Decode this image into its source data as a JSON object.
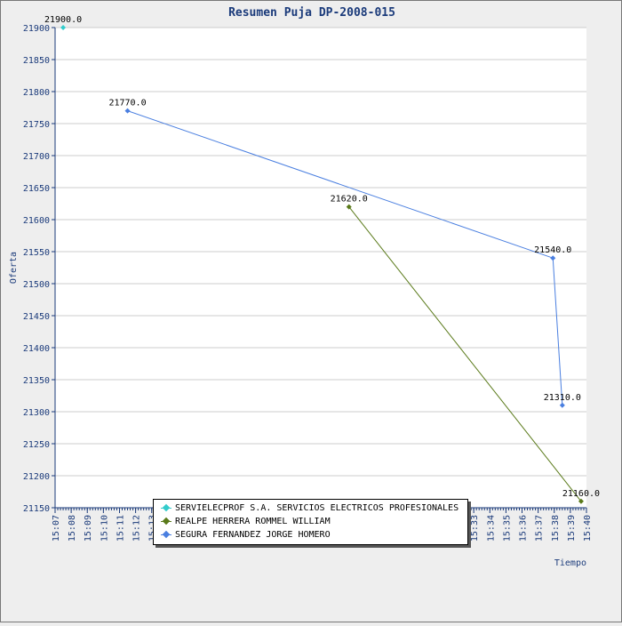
{
  "chart_data": {
    "type": "line",
    "title": "Resumen Puja DP-2008-015",
    "xlabel": "Tiempo",
    "ylabel": "Oferta",
    "ylim": [
      21150,
      21900
    ],
    "yticks": [
      21150,
      21200,
      21250,
      21300,
      21350,
      21400,
      21450,
      21500,
      21550,
      21600,
      21650,
      21700,
      21750,
      21800,
      21850,
      21900
    ],
    "xlim": [
      "15:07",
      "15:40"
    ],
    "xticks": [
      "15:07",
      "15:08",
      "15:09",
      "15:10",
      "15:11",
      "15:12",
      "15:13",
      "15:14",
      "15:15",
      "15:16",
      "15:17",
      "15:18",
      "15:19",
      "15:20",
      "15:21",
      "15:22",
      "15:23",
      "15:24",
      "15:25",
      "15:26",
      "15:27",
      "15:28",
      "15:29",
      "15:30",
      "15:31",
      "15:32",
      "15:33",
      "15:34",
      "15:35",
      "15:36",
      "15:37",
      "15:38",
      "15:39",
      "15:40"
    ],
    "xtick_labels": [
      "15:07",
      "15:08",
      "15:09",
      "15:10",
      "15:11",
      "15:12",
      "15:13",
      "",
      "",
      "",
      "",
      "",
      "",
      "",
      "",
      "",
      "",
      "",
      "",
      "",
      "",
      "",
      "",
      "",
      "",
      "",
      "15:33",
      "15:34",
      "15:35",
      "15:36",
      "15:37",
      "15:38",
      "15:39",
      "15:40"
    ],
    "grid": true,
    "legend": "bottom-center",
    "series": [
      {
        "name": "SERVIELECPROF S.A. SERVICIOS ELECTRICOS PROFESIONALES",
        "color": "#33cccc",
        "x": [
          "15:07:30"
        ],
        "y": [
          21900.0
        ],
        "labels": [
          "21900.0"
        ]
      },
      {
        "name": "REALPE HERRERA ROMMEL WILLIAM",
        "color": "#5a7a1a",
        "x": [
          "15:25:15",
          "15:39:40"
        ],
        "y": [
          21620.0,
          21160.0
        ],
        "labels": [
          "21620.0",
          "21160.0"
        ]
      },
      {
        "name": "SEGURA FERNANDEZ JORGE HOMERO",
        "color": "#4a7fe0",
        "x": [
          "15:11:30",
          "15:37:55",
          "15:38:30"
        ],
        "y": [
          21770.0,
          21540.0,
          21310.0
        ],
        "labels": [
          "21770.0",
          "21540.0",
          "21310.0"
        ]
      }
    ]
  }
}
